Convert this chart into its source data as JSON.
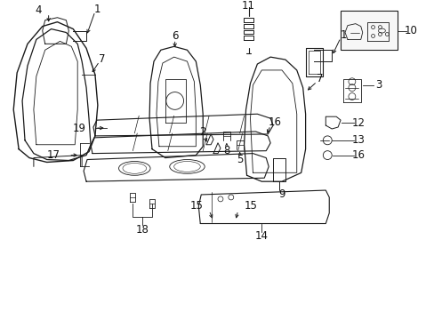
{
  "background_color": "#ffffff",
  "figsize": [
    4.89,
    3.6
  ],
  "dpi": 100,
  "line_color": "#1a1a1a",
  "label_fontsize": 8.5,
  "label_color": "#111111"
}
